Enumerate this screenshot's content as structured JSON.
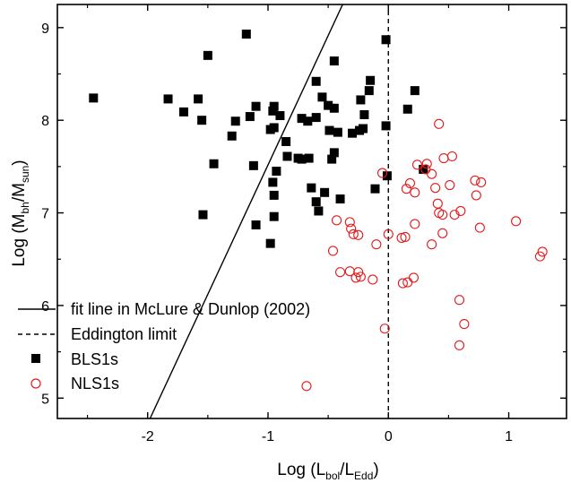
{
  "chart_data": {
    "type": "scatter",
    "xlabel": {
      "prefix": "Log (L",
      "sub1": "bol",
      "mid": "/L",
      "sub2": "Edd",
      "suffix": ")"
    },
    "ylabel": {
      "prefix": "Log (M",
      "sub1": "bh",
      "mid": "/M",
      "sub2": "sun",
      "suffix": ")"
    },
    "xlim": [
      -2.75,
      1.48
    ],
    "ylim": [
      4.78,
      9.25
    ],
    "x_ticks": [
      -2,
      -1,
      0,
      1
    ],
    "x_tick_labels": [
      "-2",
      "-1",
      "0",
      "1"
    ],
    "y_ticks": [
      5,
      6,
      7,
      8,
      9
    ],
    "y_tick_labels": [
      "5",
      "6",
      "7",
      "8",
      "9"
    ],
    "grid": false,
    "legend_position": "bottom-left",
    "lines": [
      {
        "name": "fit line in McLure & Dunlop (2002)",
        "style": "solid",
        "points": [
          [
            -1.98,
            4.78
          ],
          [
            -0.38,
            9.25
          ]
        ]
      },
      {
        "name": "Eddington limit",
        "style": "dashed",
        "points": [
          [
            0,
            4.78
          ],
          [
            0,
            9.25
          ]
        ]
      }
    ],
    "series": [
      {
        "name": "BLS1s",
        "marker": "filled-square",
        "color": "#000000",
        "points": [
          [
            -2.45,
            8.24
          ],
          [
            -1.83,
            8.23
          ],
          [
            -1.7,
            8.09
          ],
          [
            -1.58,
            8.23
          ],
          [
            -1.55,
            8.0
          ],
          [
            -1.5,
            8.7
          ],
          [
            -1.18,
            8.93
          ],
          [
            -1.15,
            8.04
          ],
          [
            -1.1,
            8.15
          ],
          [
            -1.45,
            7.53
          ],
          [
            -1.3,
            7.83
          ],
          [
            -1.27,
            7.99
          ],
          [
            -1.12,
            7.51
          ],
          [
            -1.54,
            6.98
          ],
          [
            -1.1,
            6.87
          ],
          [
            -0.98,
            6.67
          ],
          [
            -0.98,
            7.9
          ],
          [
            -0.95,
            7.92
          ],
          [
            -0.96,
            8.1
          ],
          [
            -0.95,
            8.15
          ],
          [
            -0.9,
            8.05
          ],
          [
            -0.85,
            7.77
          ],
          [
            -0.84,
            7.61
          ],
          [
            -0.93,
            7.45
          ],
          [
            -0.96,
            7.33
          ],
          [
            -0.95,
            7.19
          ],
          [
            -0.95,
            6.96
          ],
          [
            -0.75,
            7.59
          ],
          [
            -0.72,
            7.58
          ],
          [
            -0.72,
            8.02
          ],
          [
            -0.67,
            7.99
          ],
          [
            -0.66,
            7.59
          ],
          [
            -0.64,
            7.27
          ],
          [
            -0.6,
            7.12
          ],
          [
            -0.58,
            7.02
          ],
          [
            -0.53,
            7.22
          ],
          [
            -0.6,
            8.03
          ],
          [
            -0.6,
            8.42
          ],
          [
            -0.55,
            8.25
          ],
          [
            -0.5,
            8.16
          ],
          [
            -0.45,
            8.13
          ],
          [
            -0.49,
            7.89
          ],
          [
            -0.47,
            7.58
          ],
          [
            -0.45,
            7.65
          ],
          [
            -0.42,
            7.87
          ],
          [
            -0.4,
            7.15
          ],
          [
            -0.45,
            8.64
          ],
          [
            -0.3,
            7.86
          ],
          [
            -0.24,
            7.89
          ],
          [
            -0.21,
            7.91
          ],
          [
            -0.2,
            8.06
          ],
          [
            -0.23,
            8.22
          ],
          [
            -0.16,
            8.32
          ],
          [
            -0.15,
            8.43
          ],
          [
            -0.11,
            7.26
          ],
          [
            -0.01,
            7.4
          ],
          [
            -0.02,
            7.94
          ],
          [
            -0.02,
            8.87
          ],
          [
            0.16,
            8.12
          ],
          [
            0.22,
            8.32
          ],
          [
            0.29,
            7.47
          ]
        ]
      },
      {
        "name": "NLS1s",
        "marker": "open-circle",
        "color": "#e41a1c",
        "points": [
          [
            -0.68,
            5.13
          ],
          [
            -0.46,
            6.59
          ],
          [
            -0.43,
            6.92
          ],
          [
            -0.4,
            6.36
          ],
          [
            -0.32,
            6.9
          ],
          [
            -0.31,
            6.83
          ],
          [
            -0.29,
            6.77
          ],
          [
            -0.25,
            6.76
          ],
          [
            -0.32,
            6.37
          ],
          [
            -0.25,
            6.36
          ],
          [
            -0.27,
            6.3
          ],
          [
            -0.23,
            6.31
          ],
          [
            -0.13,
            6.28
          ],
          [
            -0.1,
            6.66
          ],
          [
            -0.05,
            7.43
          ],
          [
            -0.03,
            5.75
          ],
          [
            0.0,
            6.77
          ],
          [
            0.11,
            6.73
          ],
          [
            0.14,
            6.74
          ],
          [
            0.12,
            6.24
          ],
          [
            0.16,
            6.25
          ],
          [
            0.21,
            6.3
          ],
          [
            0.22,
            6.88
          ],
          [
            0.15,
            7.26
          ],
          [
            0.18,
            7.32
          ],
          [
            0.22,
            7.22
          ],
          [
            0.24,
            7.52
          ],
          [
            0.31,
            7.47
          ],
          [
            0.32,
            7.53
          ],
          [
            0.36,
            7.42
          ],
          [
            0.39,
            7.27
          ],
          [
            0.41,
            7.1
          ],
          [
            0.36,
            6.66
          ],
          [
            0.42,
            7.0
          ],
          [
            0.45,
            6.98
          ],
          [
            0.45,
            6.78
          ],
          [
            0.42,
            7.96
          ],
          [
            0.46,
            7.59
          ],
          [
            0.53,
            7.61
          ],
          [
            0.51,
            7.3
          ],
          [
            0.55,
            6.98
          ],
          [
            0.6,
            7.02
          ],
          [
            0.59,
            6.06
          ],
          [
            0.63,
            5.8
          ],
          [
            0.59,
            5.57
          ],
          [
            0.72,
            7.35
          ],
          [
            0.73,
            7.19
          ],
          [
            0.77,
            7.33
          ],
          [
            0.76,
            6.84
          ],
          [
            1.06,
            6.91
          ],
          [
            1.26,
            6.53
          ],
          [
            1.28,
            6.58
          ]
        ]
      }
    ]
  }
}
